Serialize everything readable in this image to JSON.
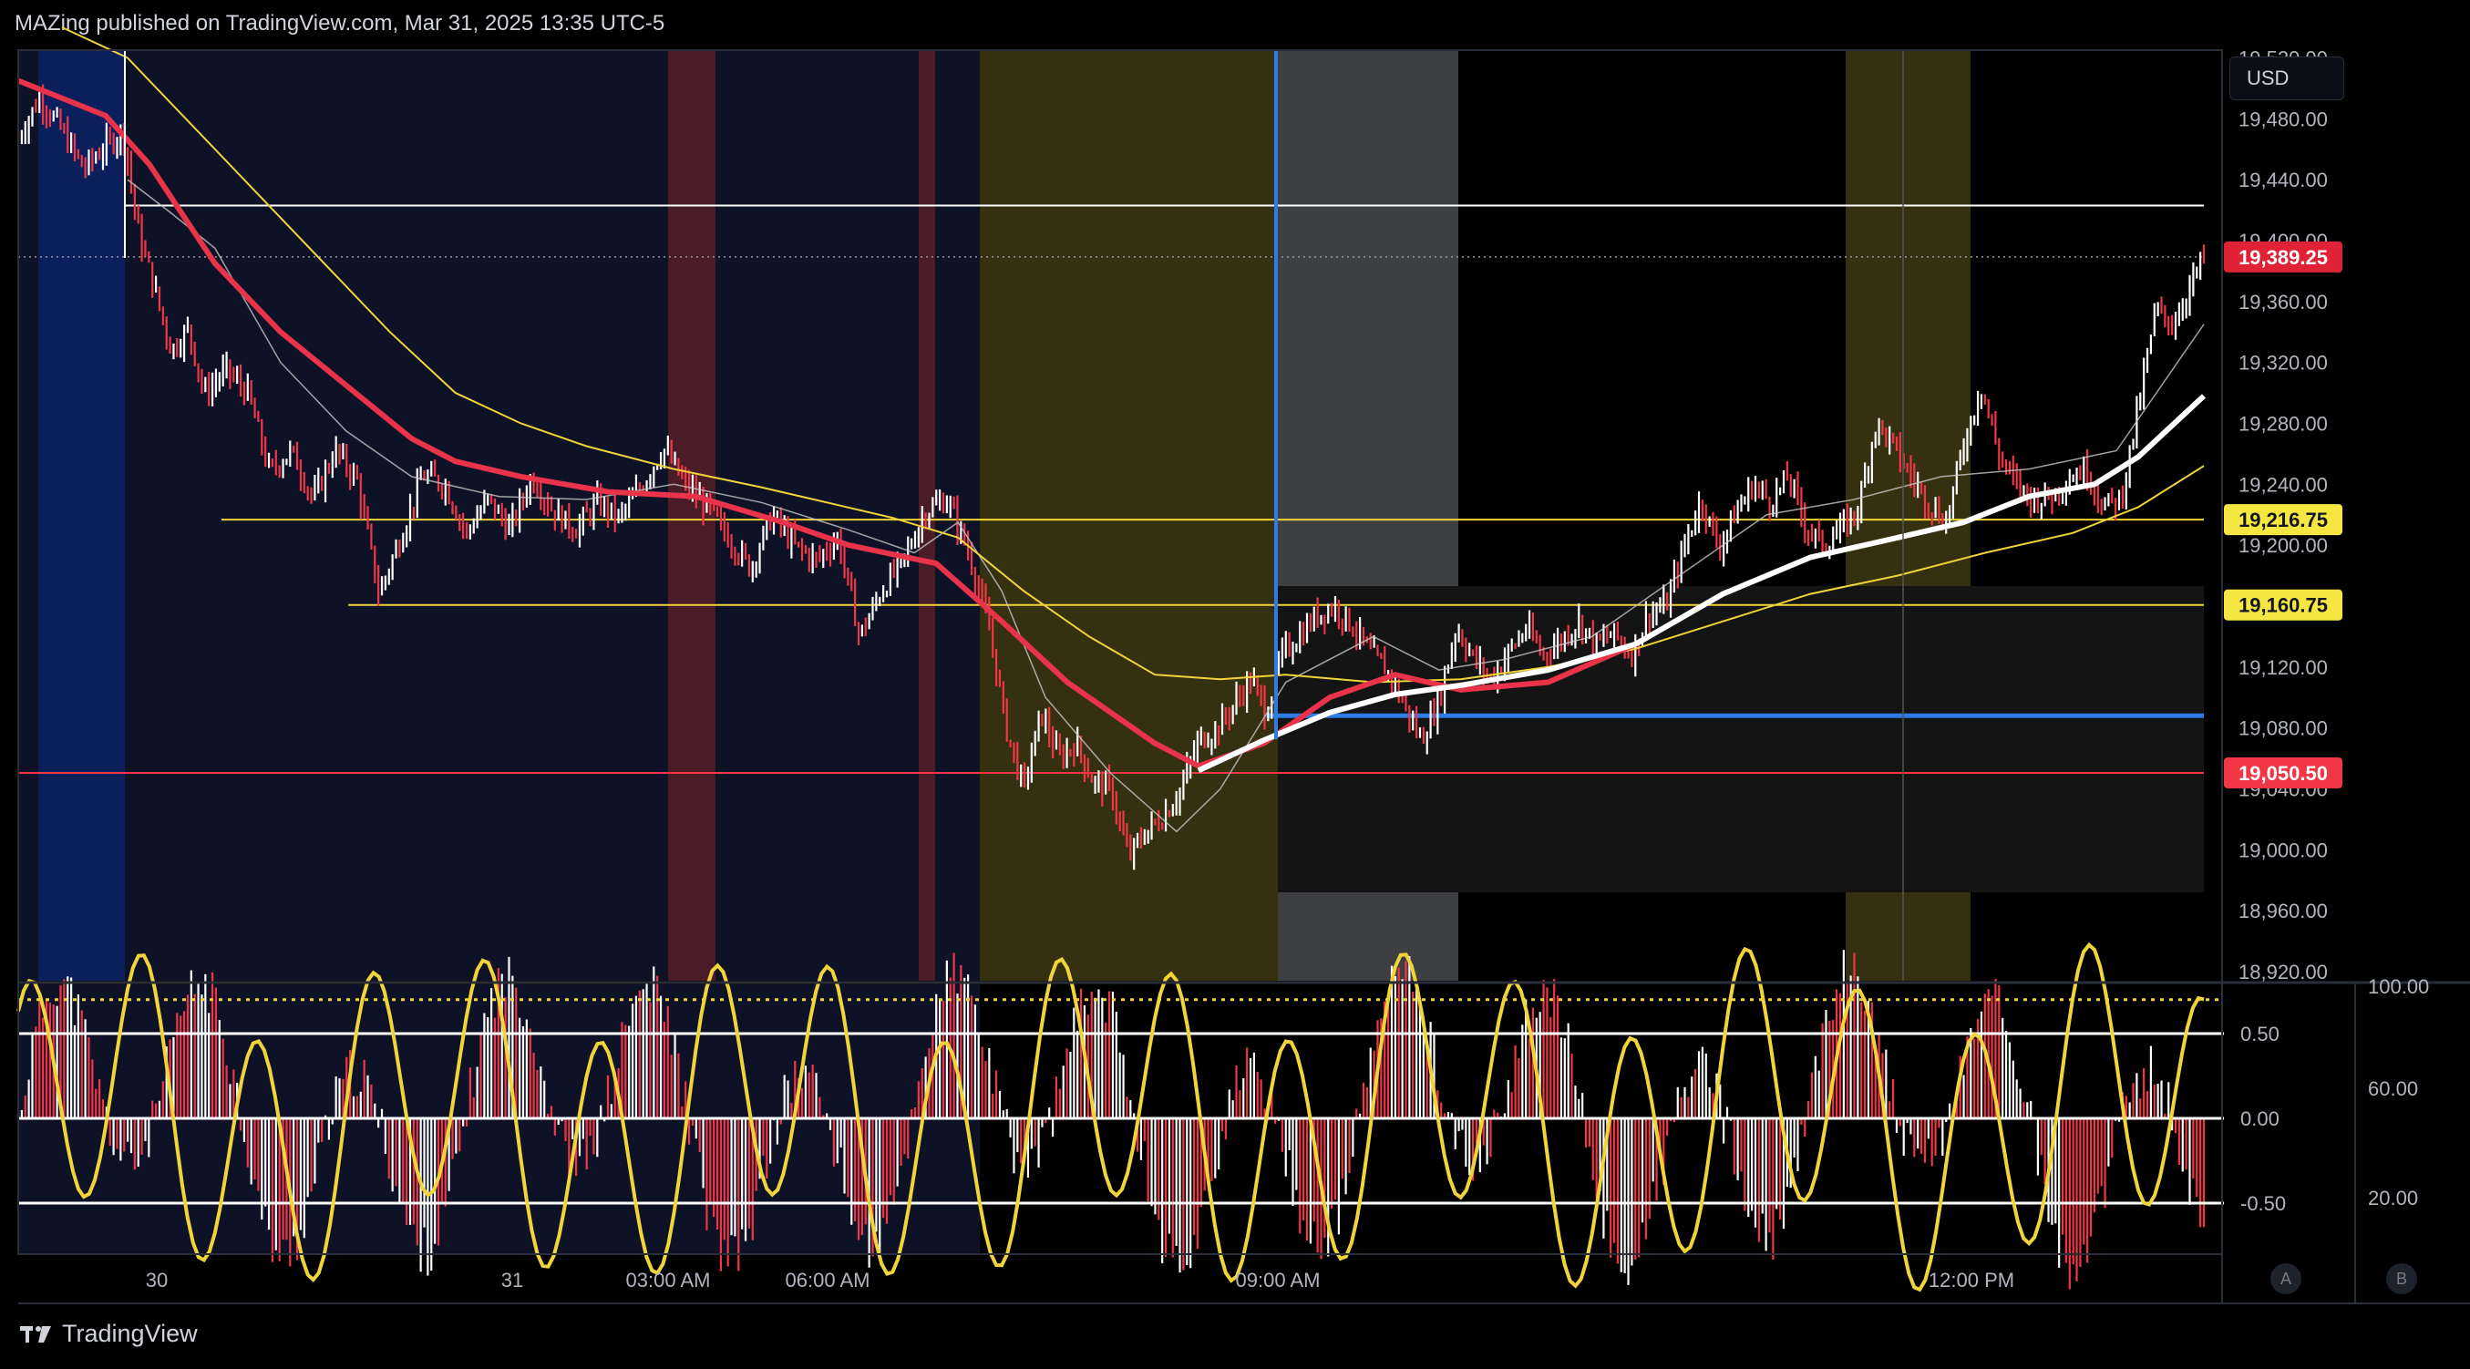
{
  "header": {
    "published": "MAZing published on TradingView.com, Mar 31, 2025 13:35 UTC-5"
  },
  "brand": {
    "name": "TradingView"
  },
  "currency": {
    "label": "USD"
  },
  "scale_buttons": {
    "a": "A",
    "b": "B"
  },
  "colors": {
    "background": "#000000",
    "session_asia": "#0d1226",
    "session_open_blue": "#0a1f5c",
    "session_red": "#4a1c28",
    "session_yellow": "#35300f",
    "session_gray": "#3e3f42",
    "candle_up": "#ffffff",
    "candle_down": "#f23645",
    "ema_red": "#e8334a",
    "ma_white": "#ffffff",
    "ma_yellow": "#f0d43a",
    "level_blue": "#2d7be5"
  },
  "chart_data": [
    {
      "type": "line",
      "title": "",
      "y_axis": {
        "ticks": [
          "19,520.00",
          "19,480.00",
          "19,440.00",
          "19,400.00",
          "19,360.00",
          "19,320.00",
          "19,280.00",
          "19,240.00",
          "19,200.00",
          "19,160.00",
          "19,120.00",
          "19,080.00",
          "19,040.00",
          "19,000.00",
          "18,960.00",
          "18,920.00"
        ],
        "ylim": [
          18920,
          19540
        ]
      },
      "x_axis": {
        "ticks": [
          "30",
          "31",
          "03:00 AM",
          "06:00 AM",
          "09:00 AM",
          "12:00 PM"
        ]
      },
      "price_tags": [
        {
          "label": "19,389.25",
          "value": 19389.25,
          "style": "current"
        },
        {
          "label": "19,216.75",
          "value": 19216.75,
          "style": "yellow"
        },
        {
          "label": "19,160.75",
          "value": 19160.75,
          "style": "yellow"
        },
        {
          "label": "19,050.50",
          "value": 19050.5,
          "style": "red"
        }
      ],
      "levels": [
        {
          "value": 19423,
          "color": "#ffffff",
          "from_t": 0.049,
          "to_t": 1.0
        },
        {
          "value": 19216.75,
          "color": "#f0d43a",
          "from_t": 0.093,
          "to_t": 1.0
        },
        {
          "value": 19160.75,
          "color": "#f0d43a",
          "from_t": 0.151,
          "to_t": 1.0
        },
        {
          "value": 19050.5,
          "color": "#f23645",
          "from_t": 0.0,
          "to_t": 1.0
        },
        {
          "value": 19088,
          "color": "#2d7be5",
          "from_t": 0.571,
          "to_t": 1.0
        }
      ],
      "price_path": [
        [
          0.0,
          19468
        ],
        [
          0.01,
          19494
        ],
        [
          0.02,
          19472
        ],
        [
          0.03,
          19447
        ],
        [
          0.04,
          19462
        ],
        [
          0.048,
          19472
        ],
        [
          0.055,
          19405
        ],
        [
          0.062,
          19370
        ],
        [
          0.07,
          19328
        ],
        [
          0.078,
          19342
        ],
        [
          0.085,
          19299
        ],
        [
          0.095,
          19315
        ],
        [
          0.105,
          19300
        ],
        [
          0.115,
          19248
        ],
        [
          0.125,
          19262
        ],
        [
          0.135,
          19230
        ],
        [
          0.145,
          19262
        ],
        [
          0.155,
          19243
        ],
        [
          0.165,
          19168
        ],
        [
          0.175,
          19205
        ],
        [
          0.185,
          19246
        ],
        [
          0.195,
          19240
        ],
        [
          0.205,
          19208
        ],
        [
          0.215,
          19230
        ],
        [
          0.225,
          19210
        ],
        [
          0.235,
          19245
        ],
        [
          0.245,
          19222
        ],
        [
          0.255,
          19210
        ],
        [
          0.265,
          19228
        ],
        [
          0.275,
          19218
        ],
        [
          0.285,
          19238
        ],
        [
          0.295,
          19264
        ],
        [
          0.305,
          19240
        ],
        [
          0.315,
          19225
        ],
        [
          0.325,
          19205
        ],
        [
          0.335,
          19185
        ],
        [
          0.345,
          19220
        ],
        [
          0.355,
          19200
        ],
        [
          0.365,
          19190
        ],
        [
          0.375,
          19205
        ],
        [
          0.385,
          19140
        ],
        [
          0.395,
          19170
        ],
        [
          0.405,
          19190
        ],
        [
          0.415,
          19222
        ],
        [
          0.425,
          19230
        ],
        [
          0.435,
          19195
        ],
        [
          0.445,
          19140
        ],
        [
          0.452,
          19080
        ],
        [
          0.46,
          19040
        ],
        [
          0.468,
          19090
        ],
        [
          0.476,
          19060
        ],
        [
          0.484,
          19070
        ],
        [
          0.492,
          19044
        ],
        [
          0.5,
          19040
        ],
        [
          0.508,
          18995
        ],
        [
          0.516,
          19012
        ],
        [
          0.524,
          19022
        ],
        [
          0.532,
          19040
        ],
        [
          0.54,
          19072
        ],
        [
          0.548,
          19078
        ],
        [
          0.556,
          19095
        ],
        [
          0.564,
          19112
        ],
        [
          0.571,
          19090
        ],
        [
          0.578,
          19128
        ],
        [
          0.586,
          19140
        ],
        [
          0.594,
          19154
        ],
        [
          0.602,
          19160
        ],
        [
          0.61,
          19148
        ],
        [
          0.618,
          19130
        ],
        [
          0.626,
          19118
        ],
        [
          0.634,
          19095
        ],
        [
          0.642,
          19072
        ],
        [
          0.65,
          19098
        ],
        [
          0.658,
          19146
        ],
        [
          0.666,
          19125
        ],
        [
          0.674,
          19112
        ],
        [
          0.682,
          19130
        ],
        [
          0.69,
          19145
        ],
        [
          0.698,
          19128
        ],
        [
          0.706,
          19138
        ],
        [
          0.714,
          19150
        ],
        [
          0.722,
          19135
        ],
        [
          0.73,
          19142
        ],
        [
          0.738,
          19128
        ],
        [
          0.746,
          19155
        ],
        [
          0.754,
          19160
        ],
        [
          0.762,
          19198
        ],
        [
          0.77,
          19230
        ],
        [
          0.778,
          19198
        ],
        [
          0.786,
          19222
        ],
        [
          0.794,
          19240
        ],
        [
          0.802,
          19228
        ],
        [
          0.81,
          19245
        ],
        [
          0.818,
          19212
        ],
        [
          0.826,
          19200
        ],
        [
          0.834,
          19210
        ],
        [
          0.842,
          19225
        ],
        [
          0.85,
          19280
        ],
        [
          0.858,
          19265
        ],
        [
          0.866,
          19245
        ],
        [
          0.874,
          19228
        ],
        [
          0.882,
          19215
        ],
        [
          0.89,
          19265
        ],
        [
          0.898,
          19305
        ],
        [
          0.906,
          19260
        ],
        [
          0.914,
          19240
        ],
        [
          0.922,
          19230
        ],
        [
          0.93,
          19232
        ],
        [
          0.938,
          19244
        ],
        [
          0.946,
          19250
        ],
        [
          0.954,
          19226
        ],
        [
          0.962,
          19230
        ],
        [
          0.97,
          19290
        ],
        [
          0.978,
          19355
        ],
        [
          0.986,
          19345
        ],
        [
          0.993,
          19368
        ],
        [
          1.0,
          19389
        ]
      ],
      "ma_red": [
        [
          0.0,
          19505
        ],
        [
          0.04,
          19482
        ],
        [
          0.06,
          19450
        ],
        [
          0.09,
          19385
        ],
        [
          0.12,
          19340
        ],
        [
          0.15,
          19305
        ],
        [
          0.18,
          19270
        ],
        [
          0.2,
          19255
        ],
        [
          0.23,
          19245
        ],
        [
          0.27,
          19235
        ],
        [
          0.31,
          19232
        ],
        [
          0.35,
          19215
        ],
        [
          0.38,
          19200
        ],
        [
          0.42,
          19188
        ],
        [
          0.45,
          19150
        ],
        [
          0.48,
          19110
        ],
        [
          0.52,
          19070
        ],
        [
          0.54,
          19055
        ],
        [
          0.57,
          19070
        ],
        [
          0.6,
          19100
        ],
        [
          0.63,
          19115
        ],
        [
          0.66,
          19105
        ],
        [
          0.7,
          19110
        ],
        [
          0.74,
          19135
        ]
      ],
      "ma_white": [
        [
          0.54,
          19052
        ],
        [
          0.57,
          19072
        ],
        [
          0.6,
          19090
        ],
        [
          0.63,
          19102
        ],
        [
          0.66,
          19108
        ],
        [
          0.7,
          19118
        ],
        [
          0.74,
          19135
        ],
        [
          0.78,
          19168
        ],
        [
          0.82,
          19192
        ],
        [
          0.86,
          19205
        ],
        [
          0.89,
          19215
        ],
        [
          0.92,
          19232
        ],
        [
          0.95,
          19240
        ],
        [
          0.97,
          19258
        ],
        [
          1.0,
          19298
        ]
      ],
      "ma_white_thin": [
        [
          0.05,
          19440
        ],
        [
          0.07,
          19418
        ],
        [
          0.09,
          19395
        ],
        [
          0.12,
          19320
        ],
        [
          0.15,
          19275
        ],
        [
          0.18,
          19245
        ],
        [
          0.22,
          19232
        ],
        [
          0.26,
          19230
        ],
        [
          0.3,
          19240
        ],
        [
          0.34,
          19228
        ],
        [
          0.38,
          19210
        ],
        [
          0.41,
          19195
        ],
        [
          0.43,
          19215
        ],
        [
          0.45,
          19170
        ],
        [
          0.47,
          19100
        ],
        [
          0.5,
          19050
        ],
        [
          0.53,
          19012
        ],
        [
          0.55,
          19040
        ],
        [
          0.58,
          19110
        ],
        [
          0.62,
          19140
        ],
        [
          0.65,
          19118
        ],
        [
          0.68,
          19125
        ],
        [
          0.72,
          19140
        ],
        [
          0.76,
          19180
        ],
        [
          0.8,
          19220
        ],
        [
          0.84,
          19230
        ],
        [
          0.88,
          19245
        ],
        [
          0.92,
          19250
        ],
        [
          0.96,
          19262
        ],
        [
          1.0,
          19345
        ]
      ],
      "ma_yellow": [
        [
          0.02,
          19540
        ],
        [
          0.05,
          19520
        ],
        [
          0.08,
          19475
        ],
        [
          0.11,
          19430
        ],
        [
          0.14,
          19385
        ],
        [
          0.17,
          19340
        ],
        [
          0.2,
          19300
        ],
        [
          0.23,
          19280
        ],
        [
          0.26,
          19265
        ],
        [
          0.3,
          19250
        ],
        [
          0.34,
          19238
        ],
        [
          0.37,
          19228
        ],
        [
          0.4,
          19218
        ],
        [
          0.43,
          19205
        ],
        [
          0.46,
          19170
        ],
        [
          0.49,
          19140
        ],
        [
          0.52,
          19115
        ],
        [
          0.55,
          19112
        ],
        [
          0.58,
          19115
        ],
        [
          0.62,
          19110
        ],
        [
          0.66,
          19112
        ],
        [
          0.7,
          19120
        ],
        [
          0.74,
          19132
        ],
        [
          0.78,
          19150
        ],
        [
          0.82,
          19168
        ],
        [
          0.86,
          19180
        ],
        [
          0.9,
          19195
        ],
        [
          0.94,
          19208
        ],
        [
          0.97,
          19225
        ],
        [
          1.0,
          19252
        ]
      ]
    },
    {
      "type": "bar",
      "title": "",
      "y_axis_left": {
        "ticks": [
          "0.50",
          "0.00",
          "-0.50"
        ]
      },
      "y_axis_right": {
        "ticks": [
          "100.00",
          "60.00",
          "20.00"
        ]
      },
      "reference_lines": [
        0.5,
        0.0,
        -0.5
      ],
      "dotted_line": 0.7
    }
  ]
}
